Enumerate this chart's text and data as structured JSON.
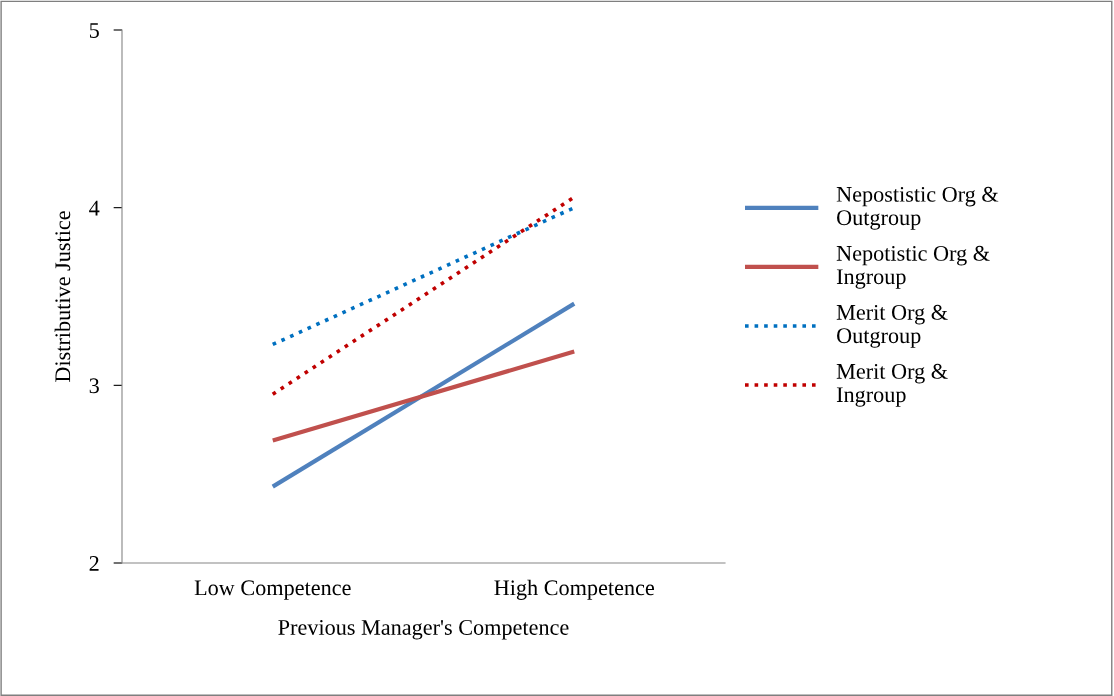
{
  "chart_data": {
    "type": "line",
    "xlabel": "Previous Manager's Competence",
    "ylabel": "Distributive Justice",
    "categories": [
      "Low Competence",
      "High Competence"
    ],
    "series": [
      {
        "name": "Nepostistic Org & Outgroup",
        "color": "#4f81bd",
        "line_style": "solid",
        "values": [
          2.43,
          3.46
        ]
      },
      {
        "name": "Nepotistic Org & Ingroup",
        "color": "#c0504d",
        "line_style": "solid",
        "values": [
          2.69,
          3.19
        ]
      },
      {
        "name": "Merit Org & Outgroup",
        "color": "#0070c0",
        "line_style": "dotted",
        "values": [
          3.23,
          4.0
        ]
      },
      {
        "name": "Merit Org & Ingroup",
        "color": "#c00000",
        "line_style": "dotted",
        "values": [
          2.95,
          4.06
        ]
      }
    ],
    "ylim": [
      2,
      5
    ],
    "yticks": [
      2,
      3,
      4,
      5
    ],
    "grid": false,
    "legend": "right",
    "marker": "none"
  }
}
